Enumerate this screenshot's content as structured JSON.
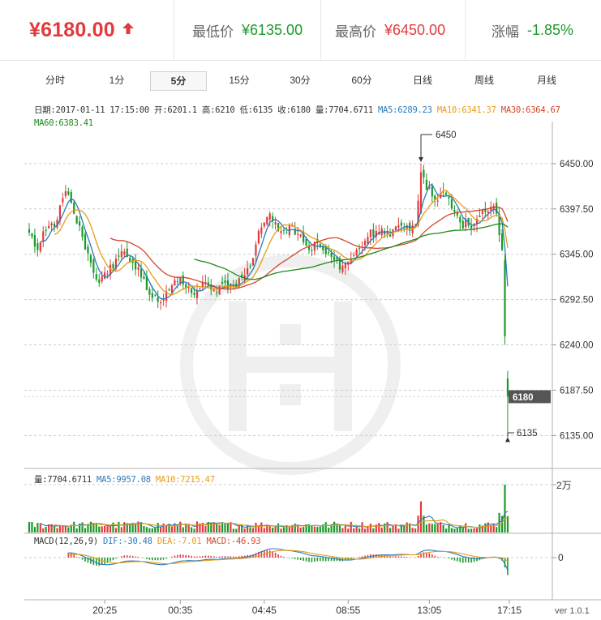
{
  "header": {
    "price": "¥6180.00",
    "low_label": "最低价",
    "low_value": "¥6135.00",
    "high_label": "最高价",
    "high_value": "¥6450.00",
    "change_label": "涨幅",
    "change_value": "-1.85%",
    "up_color": "#e4393c",
    "down_color": "#1b9a2a"
  },
  "tabs": [
    {
      "label": "分时",
      "active": false
    },
    {
      "label": "1分",
      "active": false
    },
    {
      "label": "5分",
      "active": true
    },
    {
      "label": "15分",
      "active": false
    },
    {
      "label": "30分",
      "active": false
    },
    {
      "label": "60分",
      "active": false
    },
    {
      "label": "日线",
      "active": false
    },
    {
      "label": "周线",
      "active": false
    },
    {
      "label": "月线",
      "active": false
    }
  ],
  "info": {
    "date_text": "日期:2017-01-11 17:15:00",
    "open_text": "开:6201.1",
    "high_text": "高:6210",
    "low_text": "低:6135",
    "close_text": "收:6180",
    "volume_text": "量:7704.6711",
    "ma5_text": "MA5:6289.23",
    "ma10_text": "MA10:6341.37",
    "ma30_text": "MA30:6364.67",
    "ma60_text": "MA60:6383.41"
  },
  "volume_info": {
    "vol_text": "量:7704.6711",
    "ma5_text": "MA5:9957.08",
    "ma10_text": "MA10:7215.47"
  },
  "macd_info": {
    "label_text": "MACD(12,26,9)",
    "dif_text": "DIF:-30.48",
    "dea_text": "DEA:-7.01",
    "macd_text": "MACD:-46.93"
  },
  "footer": {
    "version": "ver 1.0.1"
  },
  "chart_data": {
    "type": "candlestick",
    "price_axis": {
      "range": [
        6102.5,
        6486.5
      ],
      "ticks": [
        6135.0,
        6187.5,
        6240.0,
        6292.5,
        6345.0,
        6397.5,
        6450.0
      ],
      "tick_labels": [
        "6135.00",
        "6187.50",
        "6240.00",
        "6292.50",
        "6345.00",
        "6397.50",
        "6450.00"
      ]
    },
    "x_tick_labels": [
      "20:25",
      "00:35",
      "04:45",
      "08:55",
      "13:05",
      "17:15"
    ],
    "volume_axis": {
      "max_label": "2万",
      "max": 20000
    },
    "macd_axis": {
      "zero_label": "0"
    },
    "current_price_label": "6180",
    "annotations": {
      "high_label": "6450",
      "low_label": "6135"
    },
    "series_colors": {
      "up": "#e4393c",
      "down": "#1b9a2a",
      "MA5": "#2a7ab8",
      "MA10": "#e79b1b",
      "MA30": "#d2462e",
      "MA60": "#1d8a1d"
    },
    "anchor_closes": [
      [
        0,
        6370
      ],
      [
        3,
        6350
      ],
      [
        6,
        6372
      ],
      [
        10,
        6385
      ],
      [
        13,
        6418
      ],
      [
        16,
        6392
      ],
      [
        19,
        6365
      ],
      [
        22,
        6335
      ],
      [
        25,
        6312
      ],
      [
        28,
        6322
      ],
      [
        31,
        6340
      ],
      [
        34,
        6348
      ],
      [
        37,
        6335
      ],
      [
        40,
        6318
      ],
      [
        43,
        6298
      ],
      [
        46,
        6290
      ],
      [
        49,
        6302
      ],
      [
        52,
        6315
      ],
      [
        55,
        6310
      ],
      [
        58,
        6300
      ],
      [
        61,
        6305
      ],
      [
        64,
        6310
      ],
      [
        67,
        6300
      ],
      [
        70,
        6312
      ],
      [
        73,
        6308
      ],
      [
        76,
        6318
      ],
      [
        79,
        6330
      ],
      [
        82,
        6372
      ],
      [
        85,
        6388
      ],
      [
        88,
        6382
      ],
      [
        91,
        6372
      ],
      [
        94,
        6378
      ],
      [
        97,
        6368
      ],
      [
        100,
        6350
      ],
      [
        103,
        6358
      ],
      [
        106,
        6345
      ],
      [
        109,
        6338
      ],
      [
        112,
        6332
      ],
      [
        115,
        6340
      ],
      [
        118,
        6352
      ],
      [
        121,
        6365
      ],
      [
        124,
        6372
      ],
      [
        127,
        6368
      ],
      [
        130,
        6374
      ],
      [
        133,
        6378
      ],
      [
        136,
        6372
      ],
      [
        138,
        6380
      ],
      [
        140,
        6440
      ],
      [
        142,
        6420
      ],
      [
        145,
        6408
      ],
      [
        148,
        6418
      ],
      [
        151,
        6398
      ],
      [
        154,
        6382
      ],
      [
        157,
        6378
      ],
      [
        160,
        6386
      ],
      [
        163,
        6394
      ],
      [
        165,
        6400
      ],
      [
        167,
        6392
      ],
      [
        169,
        6350
      ],
      [
        170,
        6250
      ],
      [
        171,
        6180
      ]
    ]
  }
}
